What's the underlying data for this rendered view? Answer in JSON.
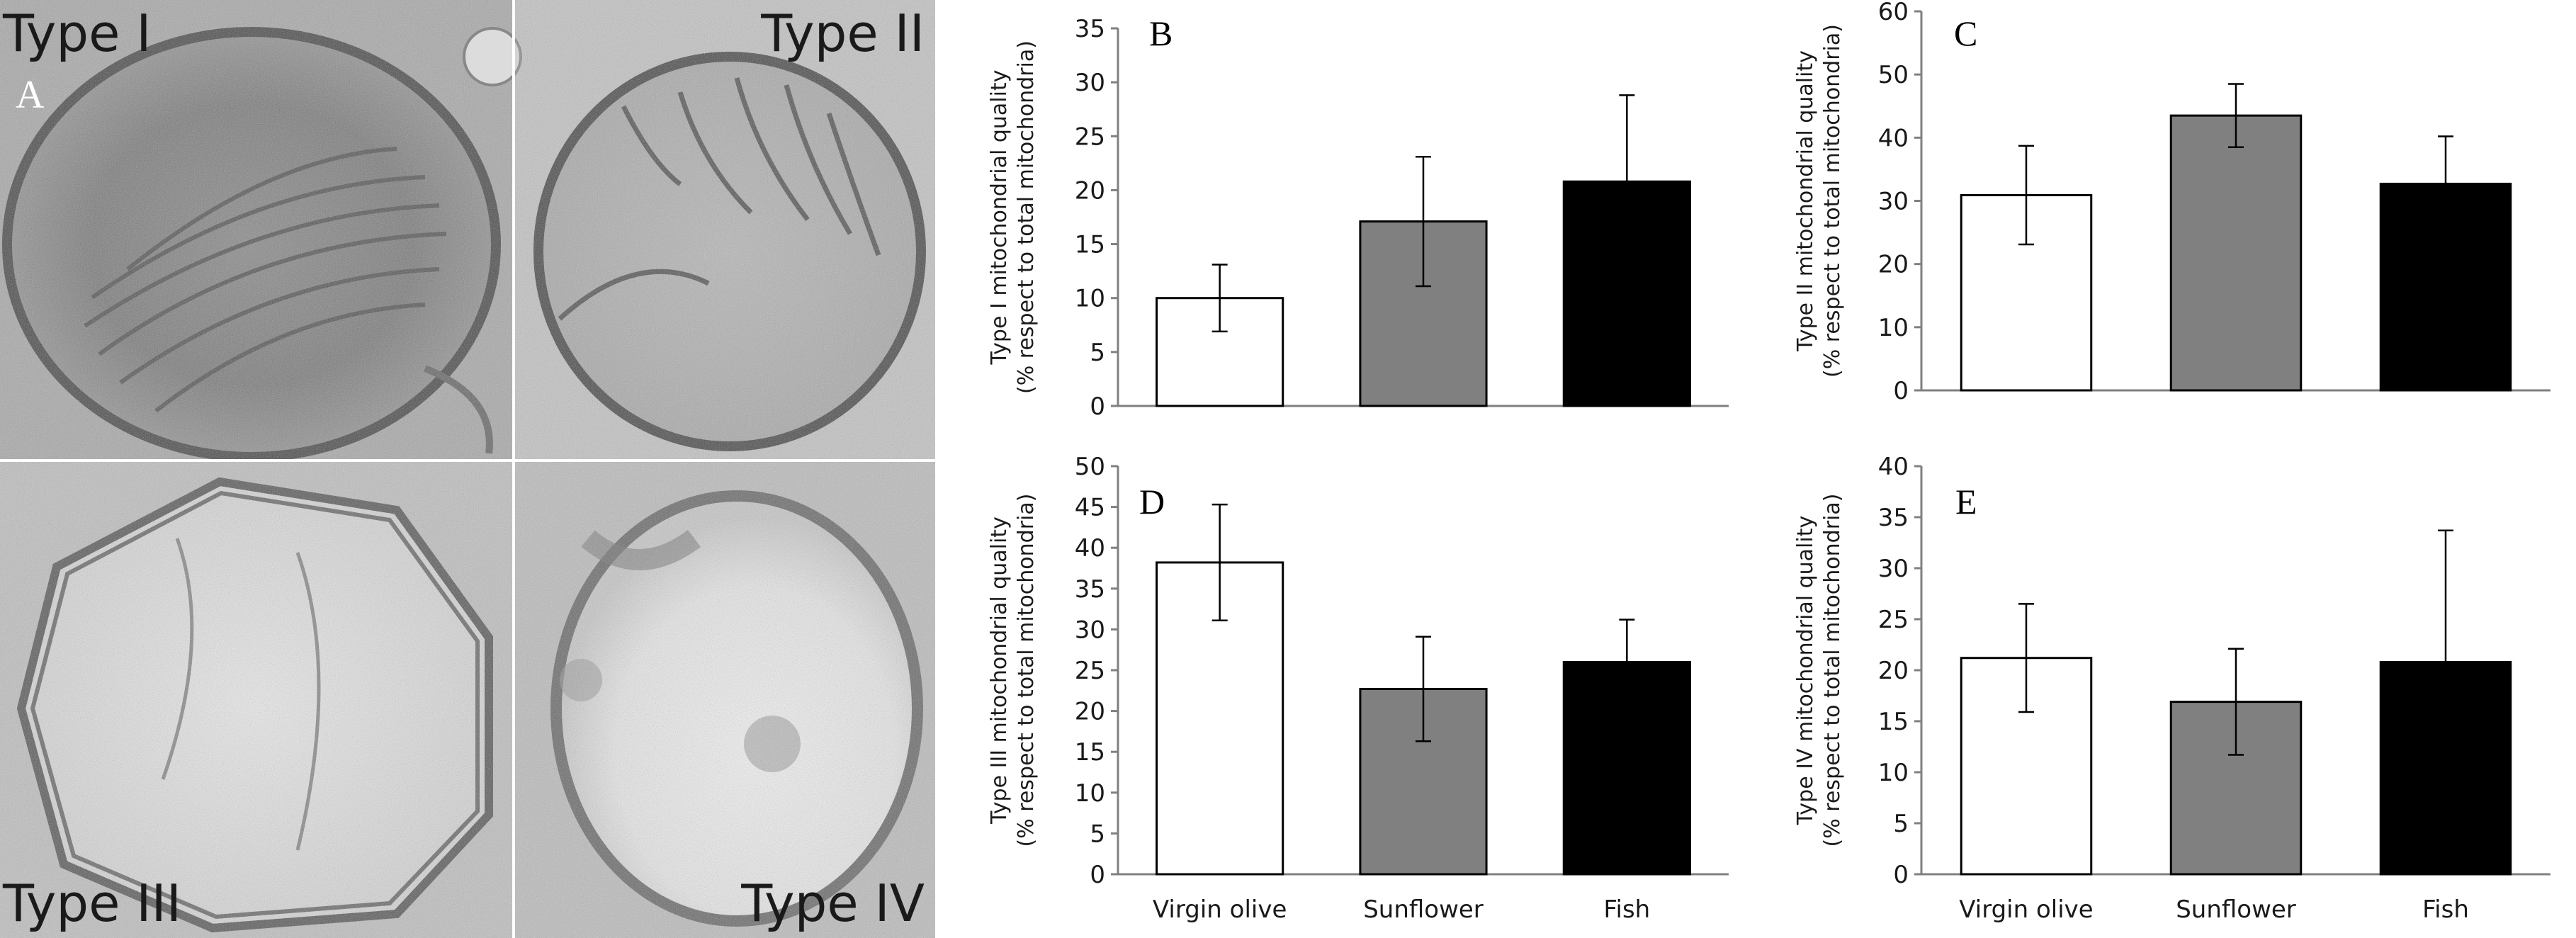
{
  "figure": {
    "panel_a": {
      "letter": "A",
      "quadrants": [
        {
          "label": "Type I"
        },
        {
          "label": "Type II"
        },
        {
          "label": "Type III"
        },
        {
          "label": "Type IV"
        }
      ]
    },
    "colors": {
      "virgin_olive": "#ffffff",
      "sunflower": "#808080",
      "fish": "#000000",
      "axis": "#808080"
    }
  },
  "chart_data": [
    {
      "type": "bar",
      "letter": "B",
      "categories": [
        "Virgin olive",
        "Sunflower",
        "Fish"
      ],
      "values": [
        10,
        17.1,
        20.8
      ],
      "errors": [
        3.1,
        6,
        8
      ],
      "ylabel_line1": "Type I mitochondrial quality",
      "ylabel_line2": "(% respect to total mitochondria)",
      "ylim": [
        0,
        35
      ],
      "yticks": [
        "0",
        "5",
        "10",
        "15",
        "20",
        "25",
        "30",
        "35"
      ]
    },
    {
      "type": "bar",
      "letter": "C",
      "categories": [
        "Virgin olive",
        "Sunflower",
        "Fish"
      ],
      "values": [
        30.9,
        43.5,
        32.7
      ],
      "errors": [
        7.8,
        5,
        7.5
      ],
      "ylabel_line1": "Type II mitochondrial quality",
      "ylabel_line2": "(% respect to total mitochondria)",
      "ylim": [
        0,
        60
      ],
      "yticks": [
        "0",
        "10",
        "20",
        "30",
        "40",
        "50",
        "60"
      ]
    },
    {
      "type": "bar",
      "letter": "D",
      "categories": [
        "Virgin olive",
        "Sunflower",
        "Fish"
      ],
      "values": [
        38.2,
        22.7,
        26
      ],
      "errors": [
        7.1,
        6.4,
        5.2
      ],
      "ylabel_line1": "Type III mitochondrial quality",
      "ylabel_line2": "(% respect to total mitochondria)",
      "ylim": [
        0,
        50
      ],
      "yticks": [
        "0",
        "5",
        "10",
        "15",
        "20",
        "25",
        "30",
        "35",
        "40",
        "45",
        "50"
      ],
      "xtick_labels": [
        "Virgin olive",
        "Sunflower",
        "Fish"
      ]
    },
    {
      "type": "bar",
      "letter": "E",
      "categories": [
        "Virgin olive",
        "Sunflower",
        "Fish"
      ],
      "values": [
        21.2,
        16.9,
        20.8
      ],
      "errors": [
        5.3,
        5.2,
        12.9
      ],
      "ylabel_line1": "Type IV mitochondrial quality",
      "ylabel_line2": "(% respect to total mitochondria)",
      "ylim": [
        0,
        40
      ],
      "yticks": [
        "0",
        "5",
        "10",
        "15",
        "20",
        "25",
        "30",
        "35",
        "40"
      ],
      "xtick_labels": [
        "Virgin olive",
        "Sunflower",
        "Fish"
      ]
    }
  ]
}
